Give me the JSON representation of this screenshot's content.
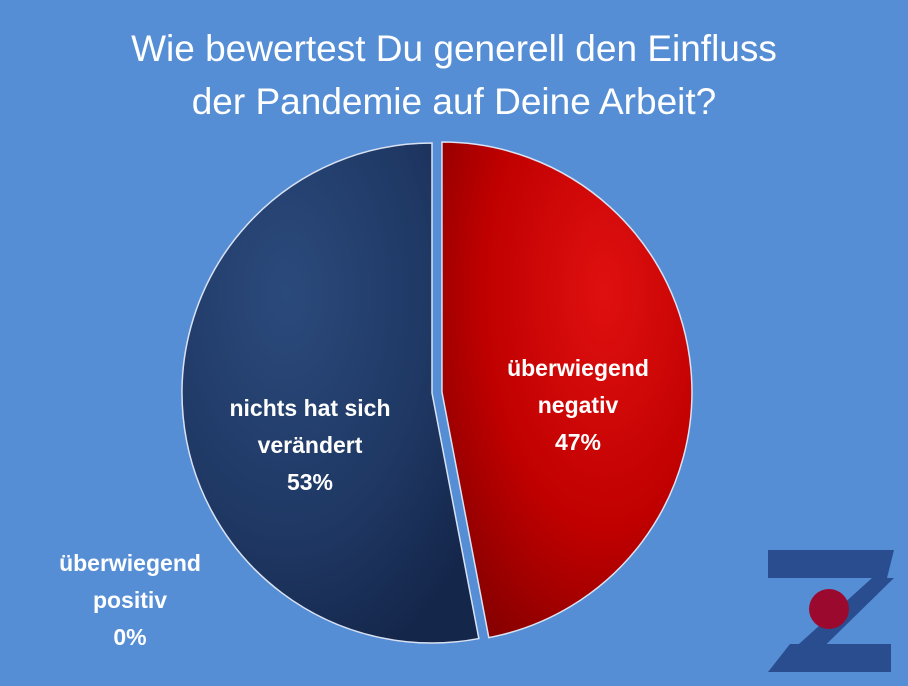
{
  "title_lines": [
    "Wie bewertest Du generell den Einfluss",
    "der Pandemie auf Deine Arbeit?"
  ],
  "chart_data": {
    "type": "pie",
    "slices": [
      {
        "label": "überwiegend negativ",
        "value": 47,
        "color": "#c00000"
      },
      {
        "label": "nichts hat sich verändert",
        "value": 53,
        "color": "#1f3864"
      },
      {
        "label": "überwiegend positiv",
        "value": 0,
        "color": "#4472c4"
      }
    ],
    "data_labels": {
      "negative": [
        "überwiegend",
        "negativ",
        "47%"
      ],
      "unchanged": [
        "nichts hat sich",
        "verändert",
        "53%"
      ],
      "positive": [
        "überwiegend",
        "positiv",
        "0%"
      ]
    },
    "exploded_slice": "überwiegend negativ"
  },
  "logo": {
    "colors": [
      "#2a4d8f",
      "#9b0a2e"
    ]
  }
}
